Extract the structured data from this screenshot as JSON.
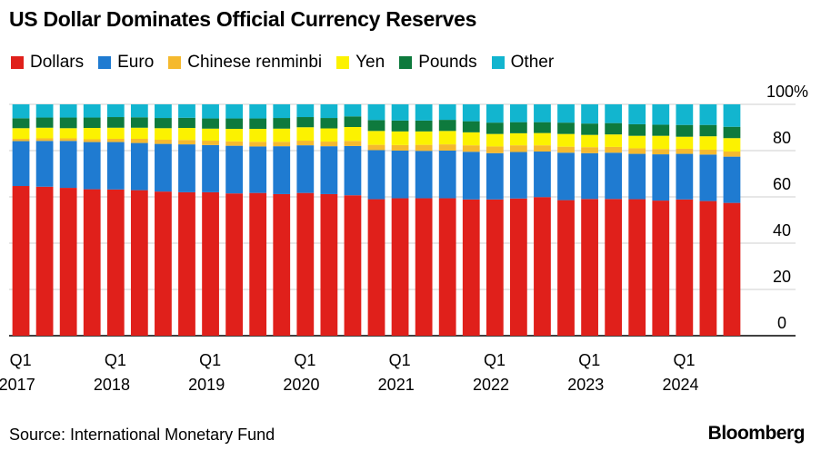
{
  "title": "US Dollar Dominates Official Currency Reserves",
  "source": "Source: International Monetary Fund",
  "brand": "Bloomberg",
  "chart_data": {
    "type": "bar",
    "stacked": true,
    "y_unit_label": "100%",
    "ylim": [
      0,
      100
    ],
    "y_ticks": [
      0,
      20,
      40,
      60,
      80,
      100
    ],
    "y_axis_position": "right",
    "grid": true,
    "legend_position": "top-left",
    "x_tick_labels": [
      {
        "index": 0,
        "quarter": "Q1",
        "year": "2017"
      },
      {
        "index": 4,
        "quarter": "Q1",
        "year": "2018"
      },
      {
        "index": 8,
        "quarter": "Q1",
        "year": "2019"
      },
      {
        "index": 12,
        "quarter": "Q1",
        "year": "2020"
      },
      {
        "index": 16,
        "quarter": "Q1",
        "year": "2021"
      },
      {
        "index": 20,
        "quarter": "Q1",
        "year": "2022"
      },
      {
        "index": 24,
        "quarter": "Q1",
        "year": "2023"
      },
      {
        "index": 28,
        "quarter": "Q1",
        "year": "2024"
      }
    ],
    "categories": [
      "Q1 2017",
      "Q2 2017",
      "Q3 2017",
      "Q4 2017",
      "Q1 2018",
      "Q2 2018",
      "Q3 2018",
      "Q4 2018",
      "Q1 2019",
      "Q2 2019",
      "Q3 2019",
      "Q4 2019",
      "Q1 2020",
      "Q2 2020",
      "Q3 2020",
      "Q4 2020",
      "Q1 2021",
      "Q2 2021",
      "Q3 2021",
      "Q4 2021",
      "Q1 2022",
      "Q2 2022",
      "Q3 2022",
      "Q4 2022",
      "Q1 2023",
      "Q2 2023",
      "Q3 2023",
      "Q4 2023",
      "Q1 2024",
      "Q2 2024",
      "Q3 2024"
    ],
    "series": [
      {
        "name": "Dollars",
        "color": "#e0201b",
        "values": [
          64.7,
          64.4,
          63.9,
          63.3,
          63.2,
          62.9,
          62.3,
          62.0,
          62.0,
          61.5,
          61.7,
          61.2,
          61.7,
          61.2,
          60.7,
          59.0,
          59.4,
          59.4,
          59.4,
          58.9,
          58.9,
          59.3,
          59.9,
          58.6,
          59.1,
          59.1,
          59.0,
          58.4,
          58.9,
          58.2,
          57.4
        ]
      },
      {
        "name": "Euro",
        "color": "#1f7bd1",
        "values": [
          19.4,
          19.8,
          20.3,
          20.4,
          20.5,
          20.4,
          20.6,
          20.7,
          20.4,
          20.6,
          20.1,
          20.7,
          20.6,
          20.7,
          21.3,
          21.2,
          20.6,
          20.5,
          20.6,
          20.6,
          20.0,
          20.1,
          19.7,
          20.5,
          19.8,
          20.0,
          19.6,
          20.0,
          19.7,
          20.1,
          20.0
        ]
      },
      {
        "name": "Chinese renminbi",
        "color": "#f5b92e",
        "values": [
          1.0,
          1.1,
          1.1,
          1.2,
          1.4,
          1.8,
          1.8,
          1.9,
          1.9,
          1.9,
          2.0,
          1.9,
          2.0,
          2.0,
          2.2,
          2.3,
          2.4,
          2.6,
          2.7,
          2.8,
          2.9,
          2.9,
          2.7,
          2.6,
          2.6,
          2.5,
          2.4,
          2.3,
          2.2,
          2.1,
          2.2
        ]
      },
      {
        "name": "Yen",
        "color": "#fcf200",
        "values": [
          4.6,
          4.6,
          4.4,
          4.9,
          4.8,
          4.8,
          5.0,
          5.2,
          5.2,
          5.4,
          5.6,
          5.7,
          5.8,
          5.7,
          6.0,
          6.0,
          5.9,
          5.8,
          5.8,
          5.6,
          5.4,
          5.2,
          5.3,
          5.5,
          5.3,
          5.4,
          5.4,
          5.7,
          5.2,
          5.8,
          5.8
        ]
      },
      {
        "name": "Pounds",
        "color": "#0e7a3d",
        "values": [
          4.3,
          4.4,
          4.6,
          4.5,
          4.6,
          4.5,
          4.4,
          4.4,
          4.4,
          4.5,
          4.5,
          4.6,
          4.4,
          4.5,
          4.6,
          4.7,
          4.7,
          4.7,
          4.8,
          4.8,
          4.9,
          4.8,
          4.7,
          4.9,
          4.9,
          4.9,
          5.0,
          4.8,
          5.1,
          4.9,
          4.9
        ]
      },
      {
        "name": "Other",
        "color": "#12b5cf",
        "values": [
          6.0,
          5.7,
          5.7,
          5.7,
          5.5,
          5.6,
          5.9,
          5.8,
          6.1,
          6.1,
          6.1,
          5.9,
          5.5,
          5.9,
          5.2,
          6.8,
          7.0,
          7.0,
          6.7,
          7.3,
          7.9,
          7.7,
          7.7,
          7.9,
          8.3,
          8.1,
          8.6,
          8.8,
          8.9,
          8.9,
          9.7
        ]
      }
    ]
  }
}
